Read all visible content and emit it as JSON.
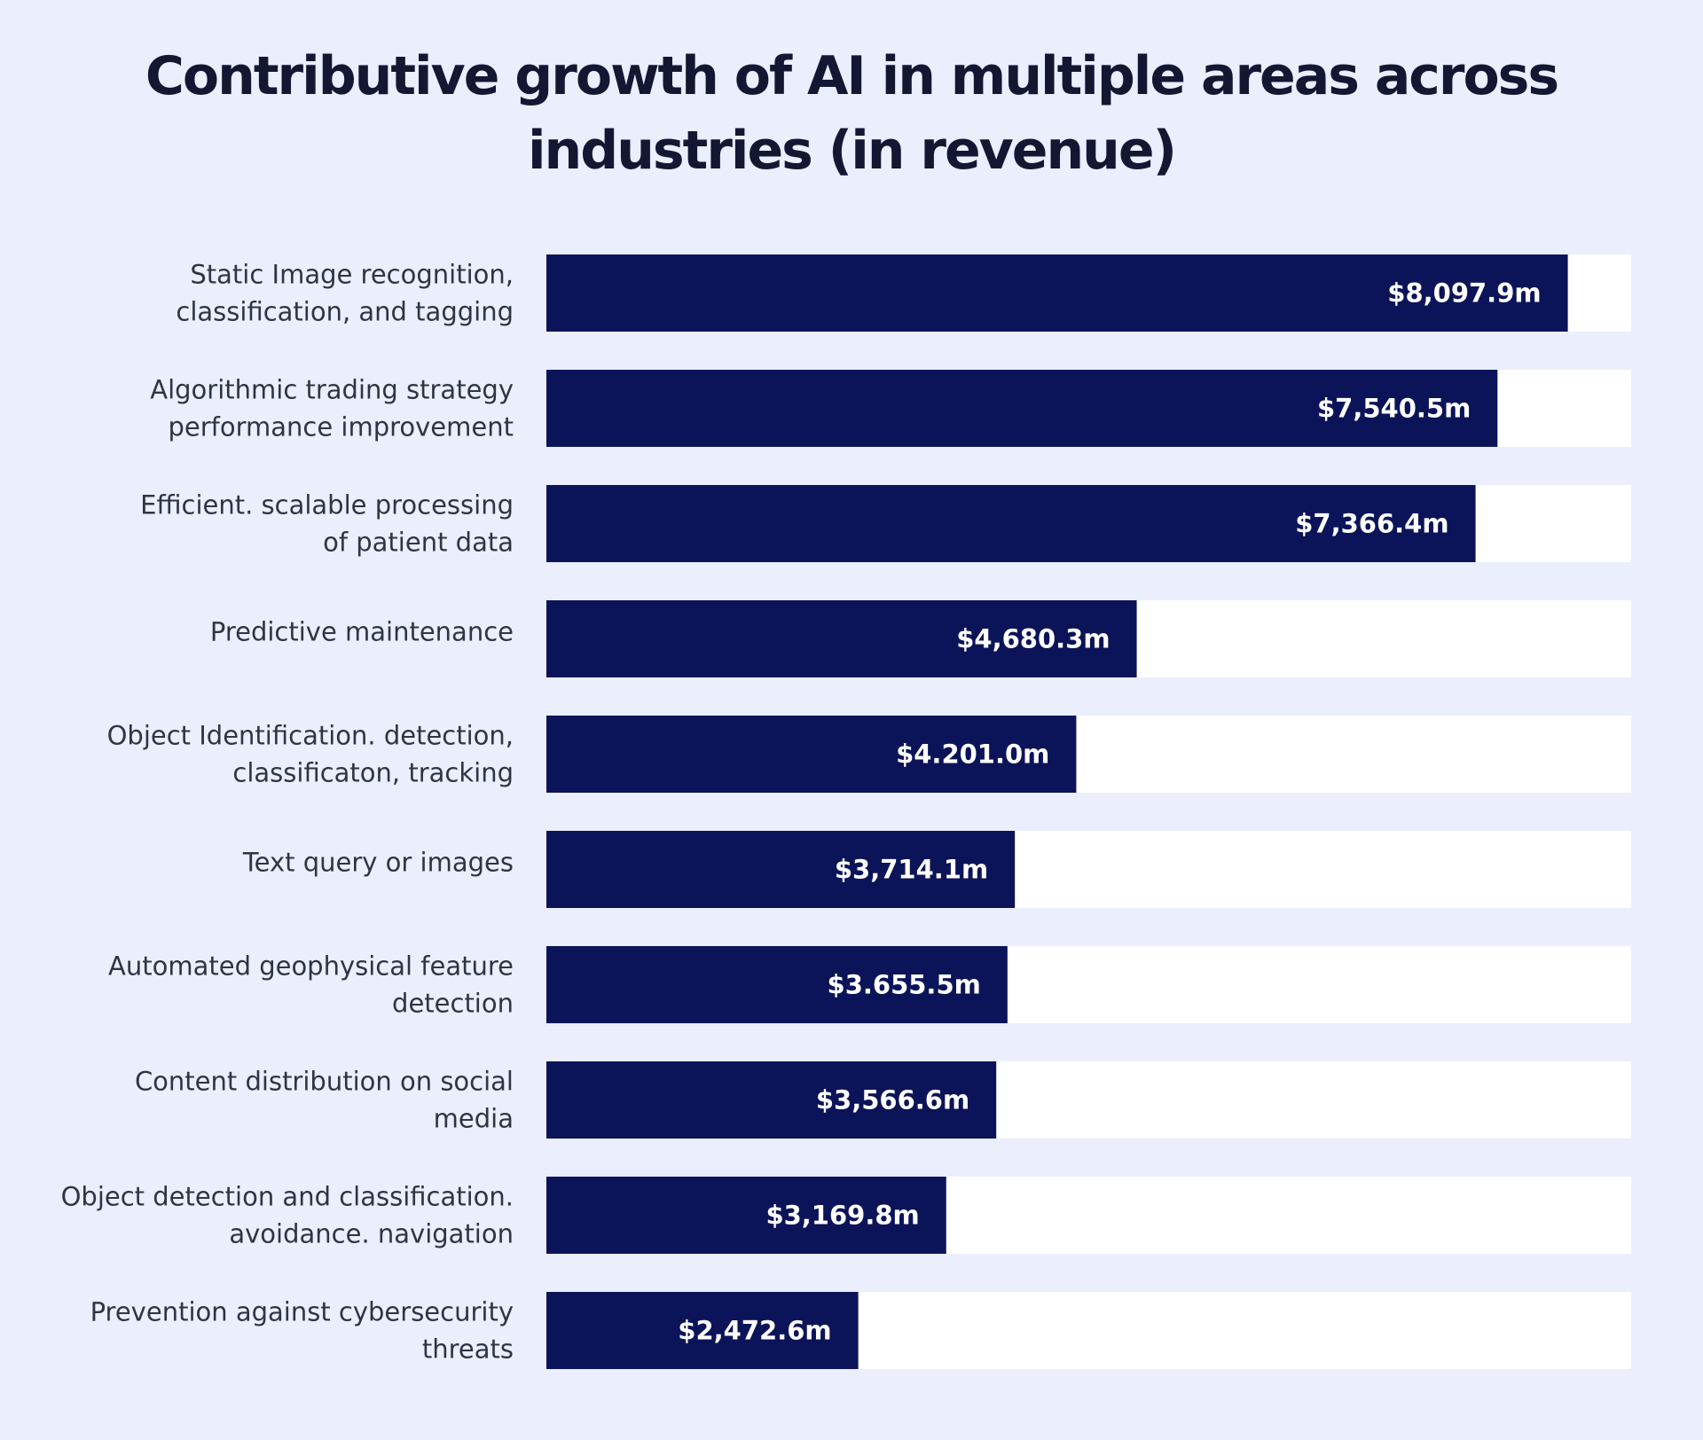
{
  "chart_data": {
    "type": "bar",
    "orientation": "horizontal",
    "title": "Contributive growth of AI in multiple areas across industries (in revenue)",
    "categories": [
      [
        "Static Image recognition,",
        "classification, and tagging"
      ],
      [
        "Algorithmic trading strategy",
        "performance improvement"
      ],
      [
        "Efficient. scalable processing",
        "of patient data"
      ],
      [
        "Predictive maintenance"
      ],
      [
        "Object Identification. detection,",
        "classificaton, tracking"
      ],
      [
        "Text query or images"
      ],
      [
        "Automated geophysical feature",
        "detection"
      ],
      [
        "Content distribution on social",
        "media"
      ],
      [
        "Object detection and classification.",
        "avoidance. navigation"
      ],
      [
        "Prevention against cybersecurity",
        "threats"
      ]
    ],
    "values": [
      8097.9,
      7540.5,
      7366.4,
      4680.3,
      4201.0,
      3714.1,
      3655.5,
      3566.6,
      3169.8,
      2472.6
    ],
    "data_labels": [
      "$8,097.9m",
      "$7,540.5m",
      "$7,366.4m",
      "$4,680.3m",
      "$4.201.0m",
      "$3,714.1m",
      "$3.655.5m",
      "$3,566.6m",
      "$3,169.8m",
      "$2,472.6m"
    ],
    "unit": "millions USD",
    "xlim": [
      0,
      8600
    ],
    "grid": false,
    "legend": "none",
    "colors": {
      "background": "#ebeefd",
      "bar": "#0c1459",
      "track": "#ffffff",
      "category_text": "#2e3542",
      "value_text": "#ffffff",
      "title_text": "#141732"
    }
  }
}
